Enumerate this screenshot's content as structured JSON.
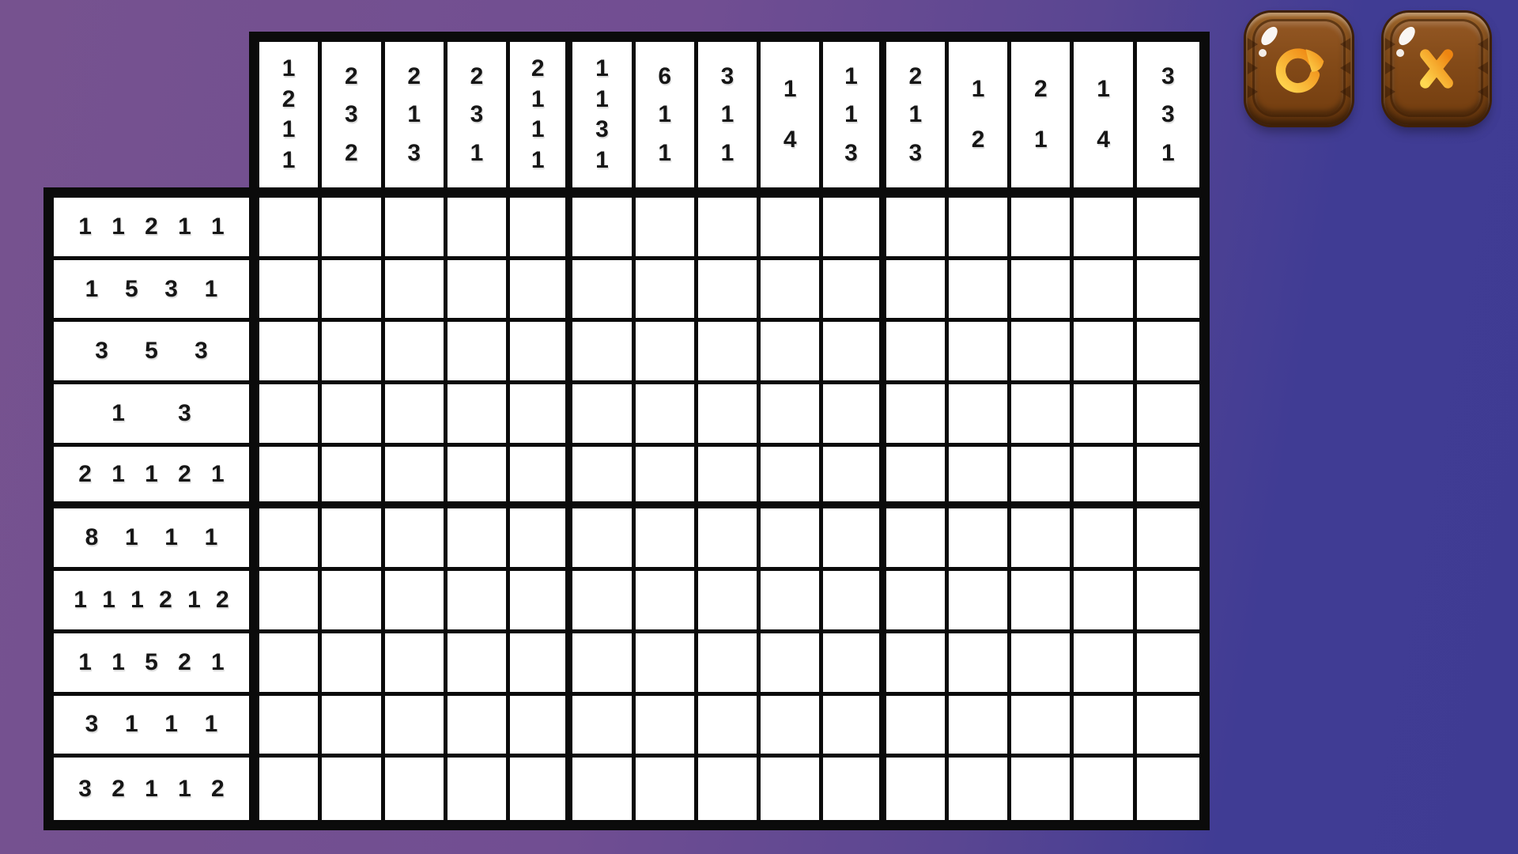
{
  "background": {
    "gradient_left_color": "#76528F",
    "gradient_right_color": "#3F3B93"
  },
  "board": {
    "cols": 15,
    "rows": 10,
    "cell_color": "#FFFFFF",
    "line_color": "#0B0B0B",
    "clue_text_color": "#161616",
    "col_clues": [
      [
        1,
        2,
        1,
        1
      ],
      [
        2,
        3,
        2
      ],
      [
        2,
        1,
        3
      ],
      [
        2,
        3,
        1
      ],
      [
        2,
        1,
        1,
        1
      ],
      [
        1,
        1,
        3,
        1
      ],
      [
        6,
        1,
        1
      ],
      [
        3,
        1,
        1
      ],
      [
        1,
        4
      ],
      [
        1,
        1,
        3
      ],
      [
        2,
        1,
        3
      ],
      [
        1,
        2
      ],
      [
        2,
        1
      ],
      [
        1,
        4
      ],
      [
        3,
        3,
        1
      ]
    ],
    "row_clues": [
      [
        1,
        1,
        2,
        1,
        1
      ],
      [
        1,
        5,
        3,
        1
      ],
      [
        3,
        5,
        3
      ],
      [
        1,
        3
      ],
      [
        2,
        1,
        1,
        2,
        1
      ],
      [
        8,
        1,
        1,
        1
      ],
      [
        1,
        1,
        1,
        2,
        1,
        2
      ],
      [
        1,
        1,
        5,
        2,
        1
      ],
      [
        3,
        1,
        1,
        1
      ],
      [
        3,
        2,
        1,
        1,
        2
      ]
    ]
  },
  "toolbar": {
    "restart_button": {
      "icon": "restart-arrow-icon",
      "icon_color_top": "#FFD851",
      "icon_color_bottom": "#EE8511",
      "wood_color": "#7A4414"
    },
    "close_button": {
      "icon": "close-x-icon",
      "icon_color_top": "#FFD851",
      "icon_color_bottom": "#EE8511",
      "wood_color": "#7A4414"
    }
  }
}
